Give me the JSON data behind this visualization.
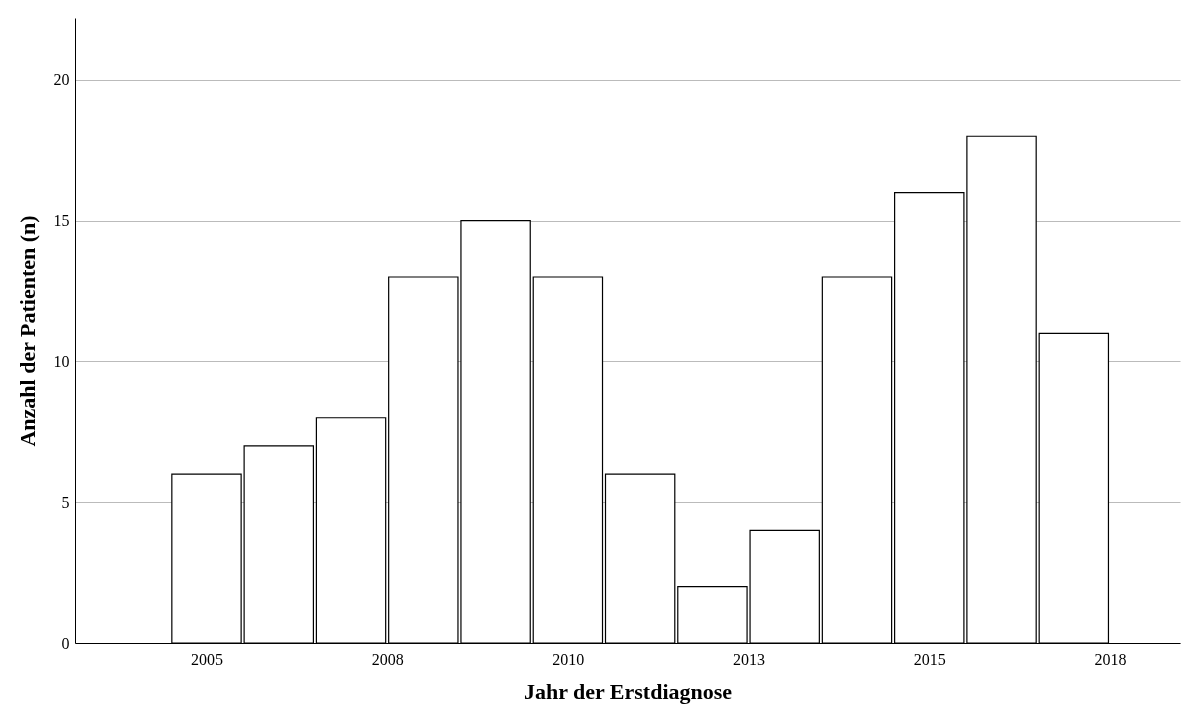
{
  "chart_data": {
    "type": "bar",
    "xlabel": "Jahr der Erstdiagnose",
    "ylabel": "Anzahl der Patienten (n)",
    "x": [
      2005,
      2006,
      2007,
      2008,
      2009,
      2010,
      2011,
      2012,
      2013,
      2014,
      2015,
      2016,
      2017
    ],
    "values": [
      6,
      7,
      8,
      13,
      15,
      13,
      6,
      2,
      4,
      13,
      16,
      18,
      11
    ],
    "color": "#ffffff",
    "xlim": [
      2003.25,
      2018.4
    ],
    "xticks": [
      2005,
      {
        "value": 2007.5,
        "label": "2008"
      },
      2010,
      {
        "value": 2012.5,
        "label": "2013"
      },
      2015,
      {
        "value": 2017.5,
        "label": "2018"
      }
    ],
    "ylim": [
      0,
      22.2
    ],
    "yticks": [
      0,
      5,
      10,
      15,
      20
    ],
    "grid": "y"
  }
}
